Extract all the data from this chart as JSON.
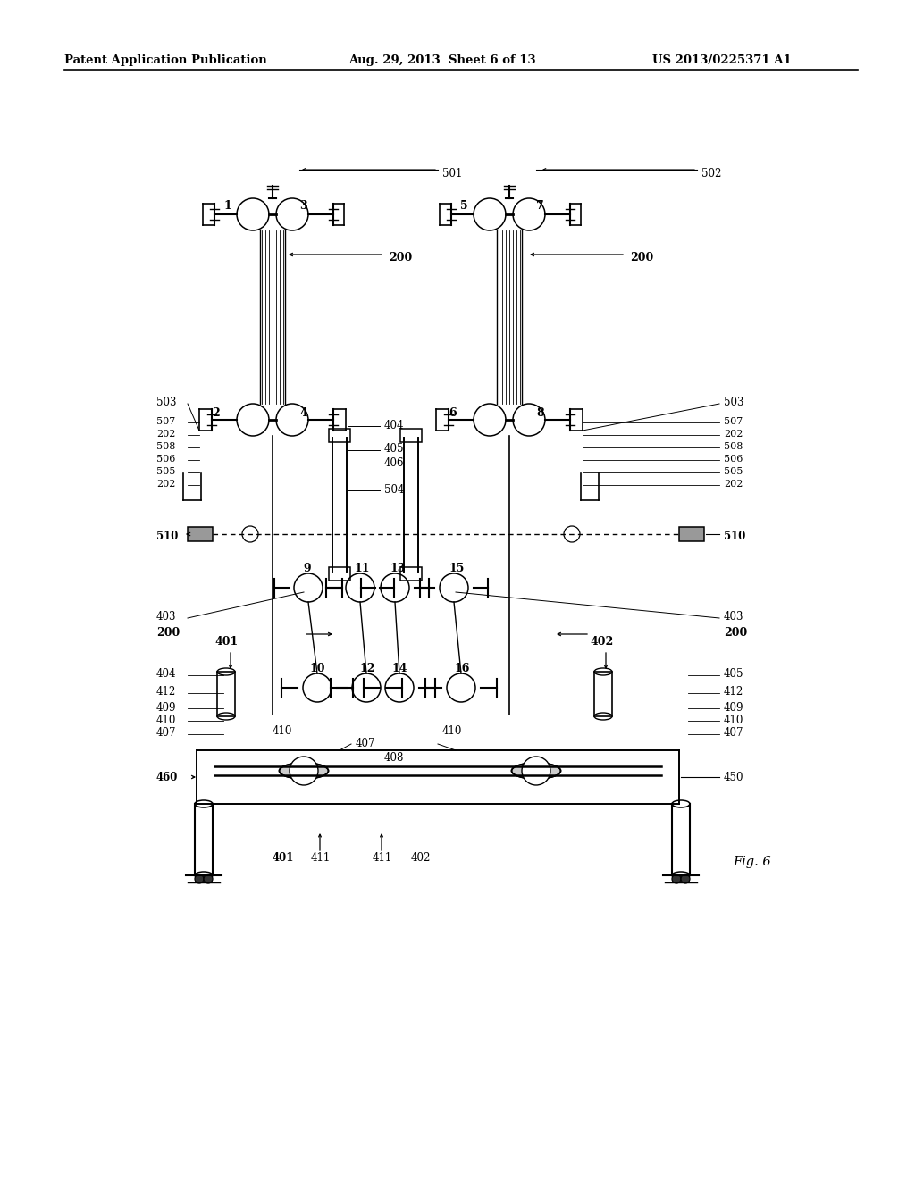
{
  "bg_color": "#ffffff",
  "header_left": "Patent Application Publication",
  "header_mid": "Aug. 29, 2013  Sheet 6 of 13",
  "header_right": "US 2013/0225371 A1",
  "figure_label": "Fig. 6",
  "page_width": 10.24,
  "page_height": 13.2,
  "dpi": 100
}
